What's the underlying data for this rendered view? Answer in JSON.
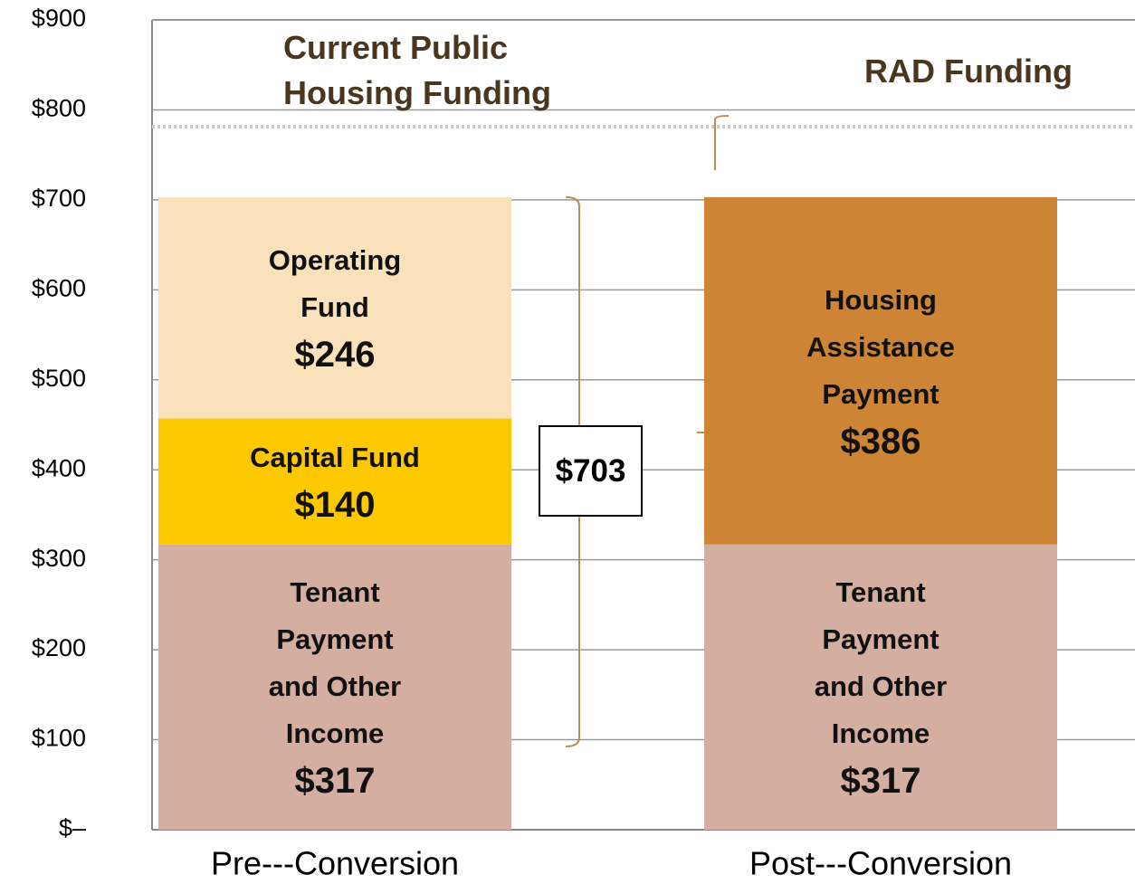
{
  "chart_data": {
    "type": "stacked-bar",
    "annotations": [
      "Current Public Housing Funding",
      "RAD Funding"
    ],
    "categories": [
      "Pre---Conversion",
      "Post---Conversion"
    ],
    "series": [
      {
        "name": "Tenant Payment and Other Income",
        "color": "#d5aea2",
        "values": [
          317,
          317
        ],
        "value_labels": [
          "$317",
          "$317"
        ]
      },
      {
        "name": "Capital Fund",
        "color": "#fcc800",
        "values": [
          140,
          null
        ],
        "value_labels": [
          "$140",
          null
        ]
      },
      {
        "name": "Operating Fund",
        "color": "#f8e1bb",
        "values": [
          246,
          null
        ],
        "value_labels": [
          "$246",
          null
        ]
      },
      {
        "name": "Housing Assistance Payment",
        "color": "#cd8535",
        "values": [
          null,
          386
        ],
        "value_labels": [
          null,
          "$386"
        ]
      }
    ],
    "total": 703,
    "total_label": "$703",
    "ylim": [
      0,
      900
    ],
    "yticks": [
      {
        "value": 0,
        "label": "$–"
      },
      {
        "value": 100,
        "label": "$100"
      },
      {
        "value": 200,
        "label": "$200"
      },
      {
        "value": 300,
        "label": "$300"
      },
      {
        "value": 400,
        "label": "$400"
      },
      {
        "value": 500,
        "label": "$500"
      },
      {
        "value": 600,
        "label": "$600"
      },
      {
        "value": 700,
        "label": "$700"
      },
      {
        "value": 800,
        "label": "$800"
      },
      {
        "value": 900,
        "label": "$900"
      }
    ],
    "grid": true
  }
}
